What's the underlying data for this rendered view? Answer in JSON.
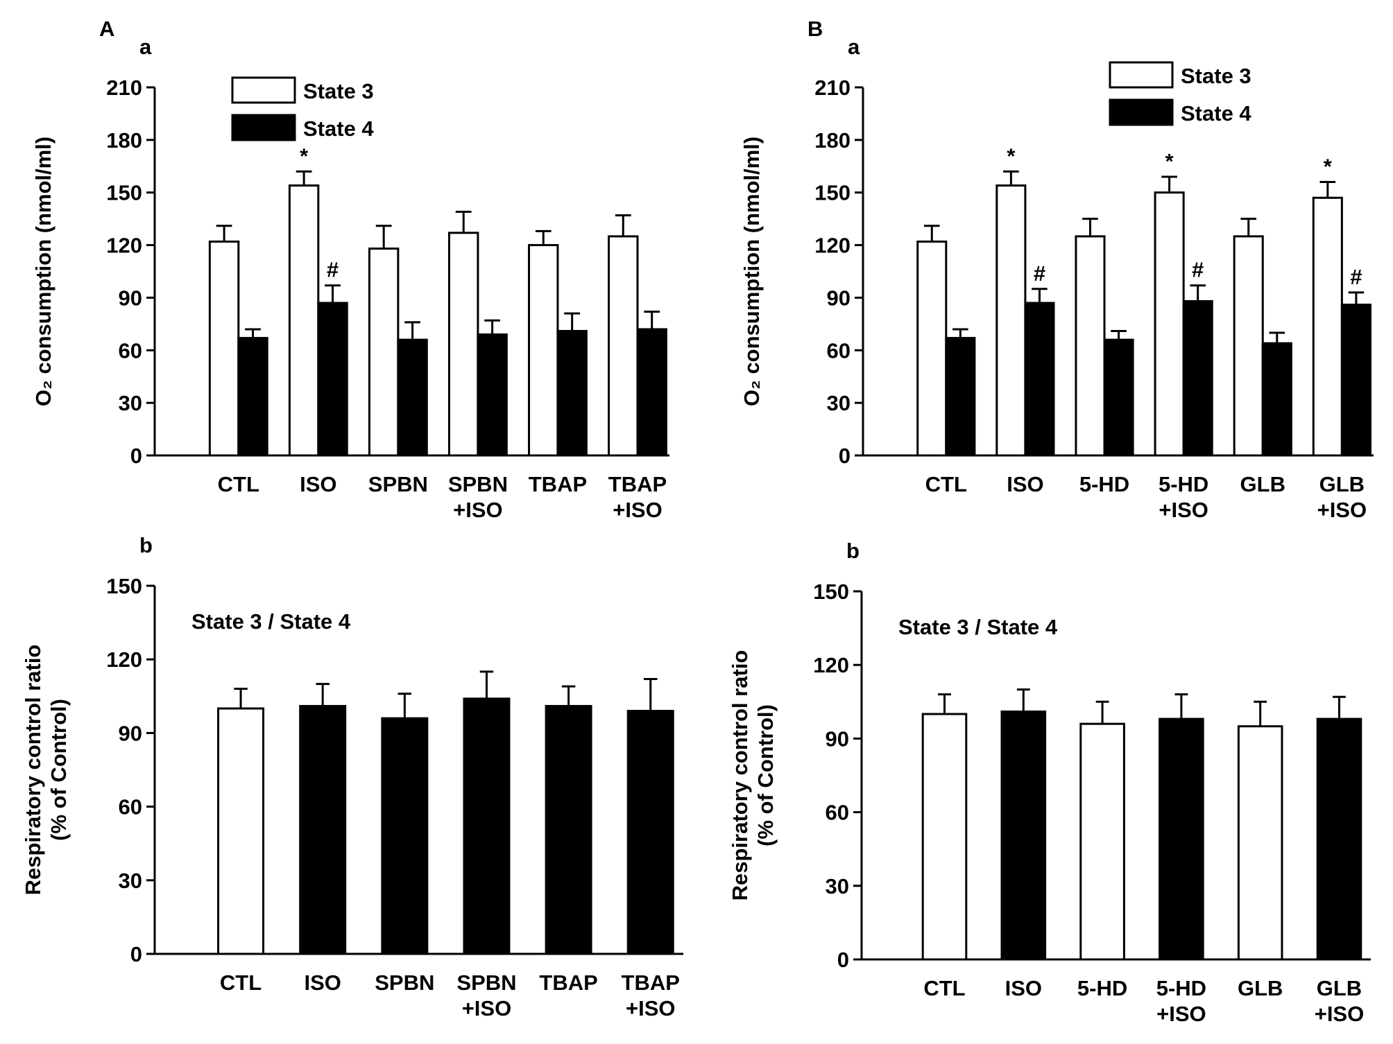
{
  "chart_data": [
    {
      "type": "bar",
      "panel_label": "A",
      "subpanel_label": "a",
      "y_label": "O₂ consumption (nmol/ml)",
      "categories": [
        "CTL",
        "ISO",
        "SPBN",
        "SPBN\n+ISO",
        "TBAP",
        "TBAP\n+ISO"
      ],
      "series": [
        {
          "name": "State 3",
          "color": "#ffffff",
          "values": [
            122,
            154,
            118,
            127,
            120,
            125
          ],
          "errors": [
            9,
            8,
            13,
            12,
            8,
            12
          ],
          "value_annotations": [
            null,
            "*",
            null,
            null,
            null,
            null
          ]
        },
        {
          "name": "State 4",
          "color": "#000000",
          "values": [
            67,
            87,
            66,
            69,
            71,
            72
          ],
          "errors": [
            5,
            10,
            10,
            8,
            10,
            10
          ],
          "value_annotations": [
            null,
            "#",
            null,
            null,
            null,
            null
          ]
        }
      ],
      "ylim": [
        0,
        210
      ],
      "yticks": [
        0,
        30,
        60,
        90,
        120,
        150,
        180,
        210
      ],
      "legend": "top-right"
    },
    {
      "type": "bar",
      "panel_label": "B",
      "subpanel_label": "a",
      "y_label": "O₂ consumption (nmol/ml)",
      "categories": [
        "CTL",
        "ISO",
        "5-HD",
        "5-HD\n+ISO",
        "GLB",
        "GLB\n+ISO"
      ],
      "series": [
        {
          "name": "State 3",
          "color": "#ffffff",
          "values": [
            122,
            154,
            125,
            150,
            125,
            147
          ],
          "errors": [
            9,
            8,
            10,
            9,
            10,
            9
          ],
          "value_annotations": [
            null,
            "*",
            null,
            "*",
            null,
            "*"
          ]
        },
        {
          "name": "State 4",
          "color": "#000000",
          "values": [
            67,
            87,
            66,
            88,
            64,
            86
          ],
          "errors": [
            5,
            8,
            5,
            9,
            6,
            7
          ],
          "value_annotations": [
            null,
            "#",
            null,
            "#",
            null,
            "#"
          ]
        }
      ],
      "ylim": [
        0,
        210
      ],
      "yticks": [
        0,
        30,
        60,
        90,
        120,
        150,
        180,
        210
      ],
      "legend": "top-right"
    },
    {
      "type": "bar",
      "subpanel_label": "b",
      "y_label": "Respiratory control ratio\n(% of Control)",
      "annotation": "State 3 / State 4",
      "categories": [
        "CTL",
        "ISO",
        "SPBN",
        "SPBN\n+ISO",
        "TBAP",
        "TBAP\n+ISO"
      ],
      "values": [
        100,
        101,
        96,
        104,
        101,
        99
      ],
      "errors": [
        8,
        9,
        10,
        11,
        8,
        13
      ],
      "colors": [
        "#ffffff",
        "#000000",
        "#000000",
        "#000000",
        "#000000",
        "#000000"
      ],
      "ylim": [
        0,
        150
      ],
      "yticks": [
        0,
        30,
        60,
        90,
        120,
        150
      ]
    },
    {
      "type": "bar",
      "subpanel_label": "b",
      "y_label": "Respiratory control ratio\n(% of Control)",
      "annotation": "State 3 / State 4",
      "categories": [
        "CTL",
        "ISO",
        "5-HD",
        "5-HD\n+ISO",
        "GLB",
        "GLB\n+ISO"
      ],
      "values": [
        100,
        101,
        96,
        98,
        95,
        98
      ],
      "errors": [
        8,
        9,
        9,
        10,
        10,
        9
      ],
      "colors": [
        "#ffffff",
        "#000000",
        "#ffffff",
        "#000000",
        "#ffffff",
        "#000000"
      ],
      "ylim": [
        0,
        150
      ],
      "yticks": [
        0,
        30,
        60,
        90,
        120,
        150
      ]
    }
  ]
}
